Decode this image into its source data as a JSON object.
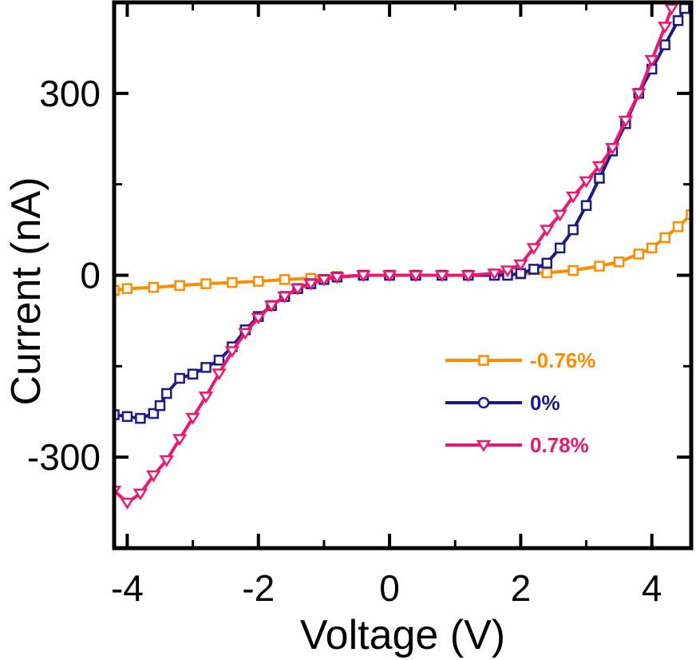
{
  "chart_data": {
    "type": "line",
    "xlabel": "Voltage (V)",
    "ylabel": "Current (nA)",
    "xlim": [
      -4.2,
      4.6
    ],
    "ylim": [
      -450,
      450
    ],
    "x_ticks": [
      -4,
      -2,
      0,
      2,
      4
    ],
    "x_tick_labels": [
      "-4",
      "-2",
      "0",
      "2",
      "4"
    ],
    "y_ticks": [
      -300,
      0,
      300
    ],
    "y_tick_labels": [
      "-300",
      "0",
      "300"
    ],
    "grid": false,
    "legend_position": "lower-right",
    "series": [
      {
        "name": "-0.76%",
        "color": "#FF8C00",
        "marker": "square",
        "points": [
          [
            -4.2,
            -25
          ],
          [
            -4.0,
            -22
          ],
          [
            -3.6,
            -20
          ],
          [
            -3.2,
            -17
          ],
          [
            -2.8,
            -14
          ],
          [
            -2.4,
            -12
          ],
          [
            -2.0,
            -10
          ],
          [
            -1.6,
            -7
          ],
          [
            -1.2,
            -5
          ],
          [
            -0.8,
            -2
          ],
          [
            -0.4,
            0
          ],
          [
            0.0,
            0
          ],
          [
            0.4,
            0
          ],
          [
            0.8,
            0
          ],
          [
            1.2,
            0
          ],
          [
            1.6,
            1
          ],
          [
            2.0,
            2
          ],
          [
            2.4,
            4
          ],
          [
            2.8,
            8
          ],
          [
            3.2,
            15
          ],
          [
            3.5,
            22
          ],
          [
            3.8,
            35
          ],
          [
            4.0,
            45
          ],
          [
            4.2,
            62
          ],
          [
            4.4,
            80
          ],
          [
            4.6,
            100
          ]
        ]
      },
      {
        "name": "0%",
        "color": "#1A1A8C",
        "marker": "square",
        "points": [
          [
            -4.2,
            -230
          ],
          [
            -4.0,
            -233
          ],
          [
            -3.8,
            -236
          ],
          [
            -3.6,
            -228
          ],
          [
            -3.5,
            -215
          ],
          [
            -3.4,
            -195
          ],
          [
            -3.2,
            -170
          ],
          [
            -3.0,
            -163
          ],
          [
            -2.8,
            -152
          ],
          [
            -2.6,
            -140
          ],
          [
            -2.4,
            -118
          ],
          [
            -2.2,
            -90
          ],
          [
            -2.0,
            -68
          ],
          [
            -1.8,
            -50
          ],
          [
            -1.6,
            -35
          ],
          [
            -1.4,
            -22
          ],
          [
            -1.2,
            -14
          ],
          [
            -1.0,
            -7
          ],
          [
            -0.8,
            -3
          ],
          [
            -0.4,
            0
          ],
          [
            0.0,
            0
          ],
          [
            0.4,
            0
          ],
          [
            0.8,
            0
          ],
          [
            1.2,
            0
          ],
          [
            1.6,
            0
          ],
          [
            1.8,
            0
          ],
          [
            2.0,
            3
          ],
          [
            2.2,
            10
          ],
          [
            2.4,
            20
          ],
          [
            2.6,
            45
          ],
          [
            2.8,
            75
          ],
          [
            3.0,
            115
          ],
          [
            3.2,
            160
          ],
          [
            3.4,
            205
          ],
          [
            3.6,
            250
          ],
          [
            3.8,
            300
          ],
          [
            4.0,
            340
          ],
          [
            4.2,
            380
          ],
          [
            4.4,
            420
          ],
          [
            4.5,
            440
          ]
        ]
      },
      {
        "name": "0.78%",
        "color": "#F0166E",
        "marker": "triangle-down",
        "points": [
          [
            -4.2,
            -355
          ],
          [
            -4.0,
            -375
          ],
          [
            -3.8,
            -360
          ],
          [
            -3.6,
            -330
          ],
          [
            -3.4,
            -305
          ],
          [
            -3.2,
            -270
          ],
          [
            -3.0,
            -235
          ],
          [
            -2.8,
            -200
          ],
          [
            -2.6,
            -162
          ],
          [
            -2.4,
            -125
          ],
          [
            -2.2,
            -95
          ],
          [
            -2.0,
            -70
          ],
          [
            -1.8,
            -50
          ],
          [
            -1.6,
            -35
          ],
          [
            -1.4,
            -22
          ],
          [
            -1.2,
            -14
          ],
          [
            -1.0,
            -7
          ],
          [
            -0.8,
            -3
          ],
          [
            -0.4,
            0
          ],
          [
            0.0,
            0
          ],
          [
            0.4,
            0
          ],
          [
            0.8,
            0
          ],
          [
            1.2,
            0
          ],
          [
            1.6,
            3
          ],
          [
            1.8,
            8
          ],
          [
            2.0,
            18
          ],
          [
            2.2,
            45
          ],
          [
            2.4,
            75
          ],
          [
            2.6,
            100
          ],
          [
            2.8,
            130
          ],
          [
            3.0,
            155
          ],
          [
            3.2,
            180
          ],
          [
            3.4,
            210
          ],
          [
            3.6,
            255
          ],
          [
            3.8,
            300
          ],
          [
            4.0,
            355
          ],
          [
            4.2,
            410
          ],
          [
            4.3,
            440
          ]
        ]
      }
    ]
  }
}
